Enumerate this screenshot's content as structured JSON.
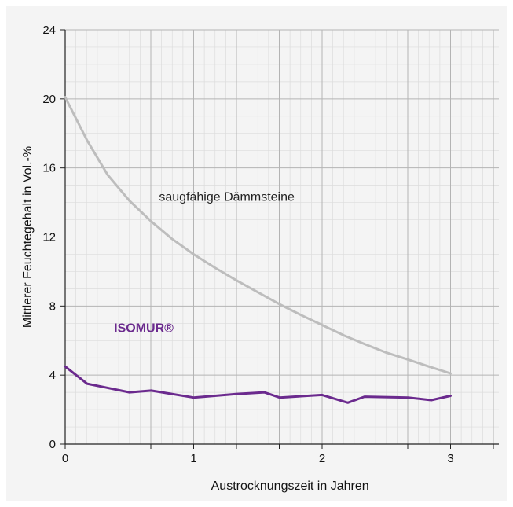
{
  "chart_data": {
    "type": "line",
    "xlabel": "Austrocknungszeit in Jahren",
    "ylabel": "Mittlerer Feuchtegehalt in Vol.-%",
    "xlim": [
      0,
      3.33
    ],
    "ylim": [
      0,
      24
    ],
    "x_ticks": [
      0,
      1,
      2,
      3
    ],
    "x_tick_labels": [
      "0",
      "1",
      "2",
      "3"
    ],
    "y_ticks": [
      0,
      4,
      8,
      12,
      16,
      20,
      24
    ],
    "y_tick_labels": [
      "0",
      "4",
      "8",
      "12",
      "16",
      "20",
      "24"
    ],
    "grid": true,
    "series": [
      {
        "name": "saugfähige Dämmsteine",
        "color": "#bdbdbd",
        "x": [
          0,
          0.17,
          0.33,
          0.5,
          0.67,
          0.83,
          1.0,
          1.17,
          1.33,
          1.5,
          1.67,
          1.83,
          2.0,
          2.17,
          2.33,
          2.5,
          2.67,
          2.83,
          3.0
        ],
        "y": [
          20.1,
          17.6,
          15.6,
          14.1,
          12.9,
          11.9,
          11.0,
          10.2,
          9.5,
          8.8,
          8.1,
          7.5,
          6.9,
          6.3,
          5.8,
          5.3,
          4.9,
          4.5,
          4.1
        ]
      },
      {
        "name": "ISOMUR®",
        "color": "#6b2a8e",
        "x": [
          0,
          0.17,
          0.5,
          0.67,
          1.0,
          1.33,
          1.55,
          1.67,
          2.0,
          2.2,
          2.33,
          2.67,
          2.85,
          3.0
        ],
        "y": [
          4.5,
          3.5,
          3.0,
          3.1,
          2.7,
          2.9,
          3.0,
          2.7,
          2.85,
          2.4,
          2.75,
          2.7,
          2.55,
          2.8
        ]
      }
    ]
  }
}
